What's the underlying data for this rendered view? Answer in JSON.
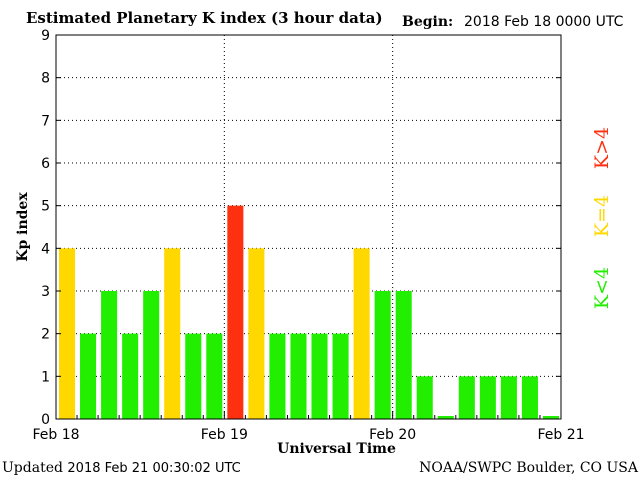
{
  "header": {
    "title": "Estimated Planetary K index (3 hour data)",
    "begin_label": "Begin:",
    "begin_value": "2018 Feb 18 0000 UTC"
  },
  "footer": {
    "updated_label": "Updated",
    "updated_value": "2018 Feb 21 00:30:02 UTC",
    "credit": "NOAA/SWPC Boulder, CO USA"
  },
  "legend": [
    {
      "label": "K<4",
      "color": "#22ee00"
    },
    {
      "label": "K=4",
      "color": "#ffd800"
    },
    {
      "label": "K>4",
      "color": "#ff3010"
    }
  ],
  "chart_data": {
    "type": "bar",
    "title": "Estimated Planetary K index (3 hour data)",
    "xlabel": "Universal Time",
    "ylabel": "Kp index",
    "ylim": [
      0,
      9
    ],
    "yticks": [
      0,
      1,
      2,
      3,
      4,
      5,
      6,
      7,
      8,
      9
    ],
    "xtick_labels": [
      "Feb 18",
      "Feb 19",
      "Feb 20",
      "Feb 21"
    ],
    "grid": true,
    "values": [
      4,
      2,
      3,
      2,
      3,
      4,
      2,
      2,
      5,
      4,
      2,
      2,
      2,
      2,
      4,
      3,
      3,
      1,
      0.07,
      1,
      1,
      1,
      1,
      0.07
    ],
    "colors": {
      "low": "#22ee00",
      "storm_threshold": "#ffd800",
      "storm": "#ff3010"
    }
  }
}
